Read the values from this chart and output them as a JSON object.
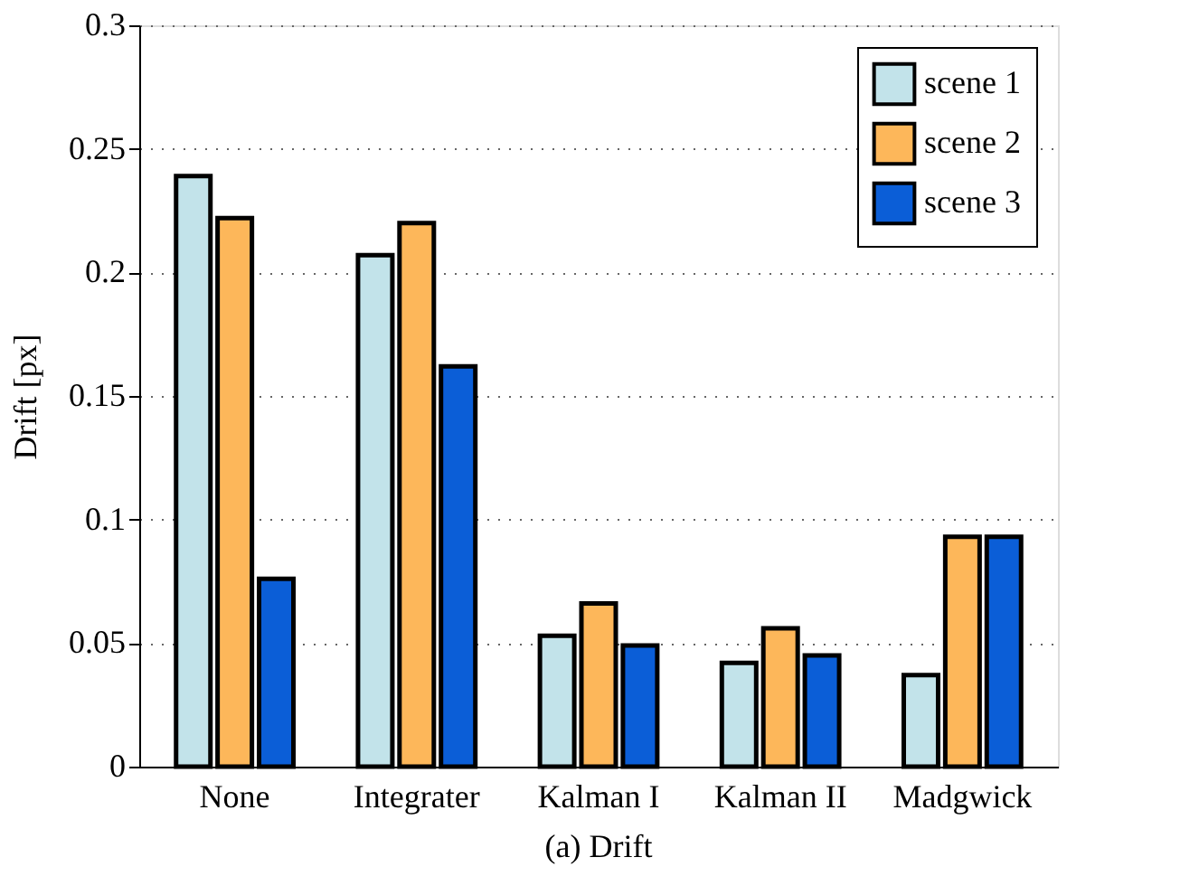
{
  "chart_data": {
    "type": "bar",
    "ylabel": "Drift [px]",
    "categories": [
      "None",
      "Integrater",
      "Kalman I",
      "Kalman II",
      "Madgwick"
    ],
    "series": [
      {
        "name": "scene 1",
        "color": "#c2e3ea",
        "values": [
          0.239,
          0.207,
          0.053,
          0.042,
          0.037
        ]
      },
      {
        "name": "scene 2",
        "color": "#fdb75a",
        "values": [
          0.222,
          0.22,
          0.066,
          0.056,
          0.093
        ]
      },
      {
        "name": "scene 3",
        "color": "#0b5ed7",
        "values": [
          0.076,
          0.162,
          0.049,
          0.045,
          0.093
        ]
      }
    ],
    "ylim": [
      0,
      0.3
    ],
    "yticks": [
      0,
      0.05,
      0.1,
      0.15,
      0.2,
      0.25,
      0.3
    ],
    "grid": "y",
    "legend": "top right",
    "annotations": [
      "(a) Drift"
    ]
  }
}
